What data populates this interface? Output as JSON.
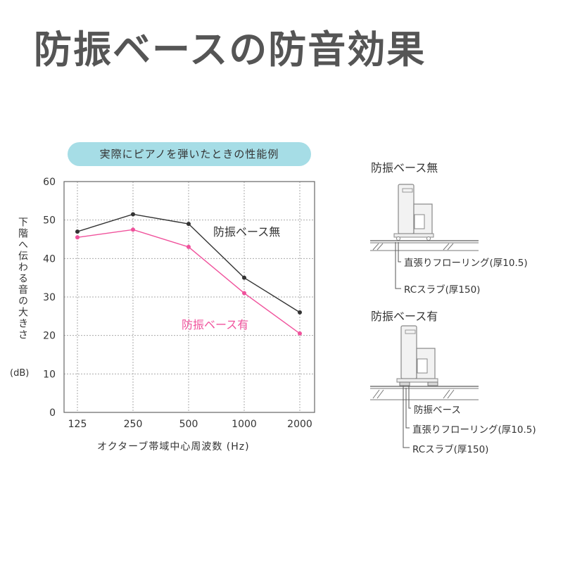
{
  "title": "防振ベースの防音効果",
  "chart_data": {
    "type": "line",
    "subtitle": "実際にピアノを弾いたときの性能例",
    "ylabel": "下階へ伝わる音の大きさ",
    "ylabel_unit": "(dB)",
    "xlabel": "オクターブ帯域中心周波数 (Hz)",
    "categories": [
      "125",
      "250",
      "500",
      "1000",
      "2000"
    ],
    "yticks": [
      "0",
      "10",
      "20",
      "30",
      "40",
      "50",
      "60"
    ],
    "ylim": [
      0,
      60
    ],
    "grid": true,
    "series": [
      {
        "name": "防振ベース無",
        "values": [
          47,
          51.5,
          49,
          35,
          26
        ],
        "color": "#333333"
      },
      {
        "name": "防振ベース有",
        "values": [
          45.5,
          47.5,
          43,
          31,
          20.5
        ],
        "color": "#f0529c"
      }
    ]
  },
  "diagram": {
    "without_title": "防振ベース無",
    "without_callouts": [
      "直張りフローリング(厚10.5)",
      "RCスラブ(厚150)"
    ],
    "with_title": "防振ベース有",
    "with_callouts": [
      "防振ベース",
      "直張りフローリング(厚10.5)",
      "RCスラブ(厚150)"
    ]
  }
}
